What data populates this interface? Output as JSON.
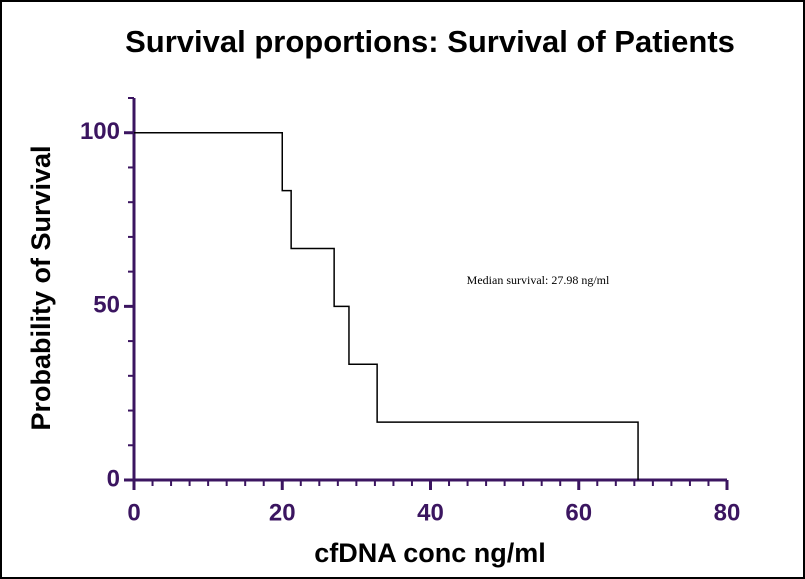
{
  "chart_data": {
    "type": "step",
    "title": "Survival proportions: Survival of Patients",
    "xlabel": "cfDNA conc ng/ml",
    "ylabel": "Probability of Survival",
    "annotation": "Median survival: 27.98 ng/ml",
    "x": [
      0,
      20,
      21.2,
      27,
      29,
      32.8,
      68
    ],
    "values": [
      100,
      83.33,
      66.67,
      50,
      33.33,
      16.67,
      0
    ],
    "color": "#000000",
    "axis_color": "#3b1560",
    "xlim": [
      0,
      80
    ],
    "xticks": [
      0,
      20,
      40,
      60,
      80
    ],
    "xminorticks": [
      2.5,
      5,
      7.5,
      10,
      12.5,
      15,
      17.5,
      22.5,
      25,
      27.5,
      30,
      32.5,
      35,
      37.5,
      42.5,
      45,
      47.5,
      50,
      52.5,
      55,
      57.5,
      62.5,
      65,
      67.5,
      70,
      72.5,
      75,
      77.5
    ],
    "ylim": [
      0,
      110
    ],
    "yticks": [
      0,
      50,
      100
    ],
    "yminorticks": [
      10,
      20,
      30,
      40,
      60,
      70,
      80,
      90,
      110
    ]
  }
}
